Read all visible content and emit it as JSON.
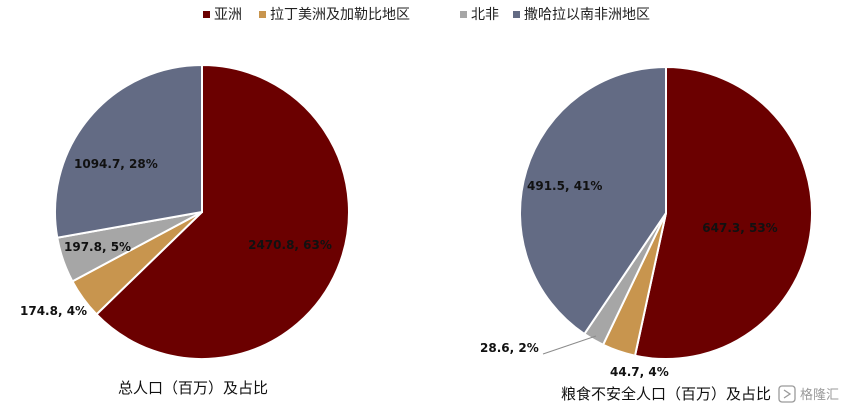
{
  "legend": [
    {
      "label": "亚洲",
      "color": "#6B0000"
    },
    {
      "label": "拉丁美洲及加勒比地区",
      "color": "#C8954E"
    },
    {
      "label": "北非",
      "color": "#A6A6A6"
    },
    {
      "label": "撒哈拉以南非洲地区",
      "color": "#636B84"
    }
  ],
  "captions": {
    "left": "总人口（百万）及占比",
    "right": "粮食不安全人口（百万）及占比"
  },
  "watermark": {
    "text": "格隆汇",
    "icon": "gelonghui-logo-icon"
  },
  "chart_data": [
    {
      "type": "pie",
      "title": "总人口（百万）及占比",
      "slices": [
        {
          "category": "亚洲",
          "value": 2470.8,
          "percent": 63,
          "label": "2470.8, 63%",
          "color": "#6B0000"
        },
        {
          "category": "拉丁美洲及加勒比地区",
          "value": 174.8,
          "percent": 4,
          "label": "174.8, 4%",
          "color": "#C8954E"
        },
        {
          "category": "北非",
          "value": 197.8,
          "percent": 5,
          "label": "197.8, 5%",
          "color": "#A6A6A6"
        },
        {
          "category": "撒哈拉以南非洲地区",
          "value": 1094.7,
          "percent": 28,
          "label": "1094.7, 28%",
          "color": "#636B84"
        }
      ]
    },
    {
      "type": "pie",
      "title": "粮食不安全人口（百万）及占比",
      "slices": [
        {
          "category": "亚洲",
          "value": 647.3,
          "percent": 53,
          "label": "647.3, 53%",
          "color": "#6B0000"
        },
        {
          "category": "拉丁美洲及加勒比地区",
          "value": 44.7,
          "percent": 4,
          "label": "44.7, 4%",
          "color": "#C8954E"
        },
        {
          "category": "北非",
          "value": 28.6,
          "percent": 2,
          "label": "28.6, 2%",
          "color": "#A6A6A6"
        },
        {
          "category": "撒哈拉以南非洲地区",
          "value": 491.5,
          "percent": 41,
          "label": "491.5, 41%",
          "color": "#636B84"
        }
      ]
    }
  ]
}
